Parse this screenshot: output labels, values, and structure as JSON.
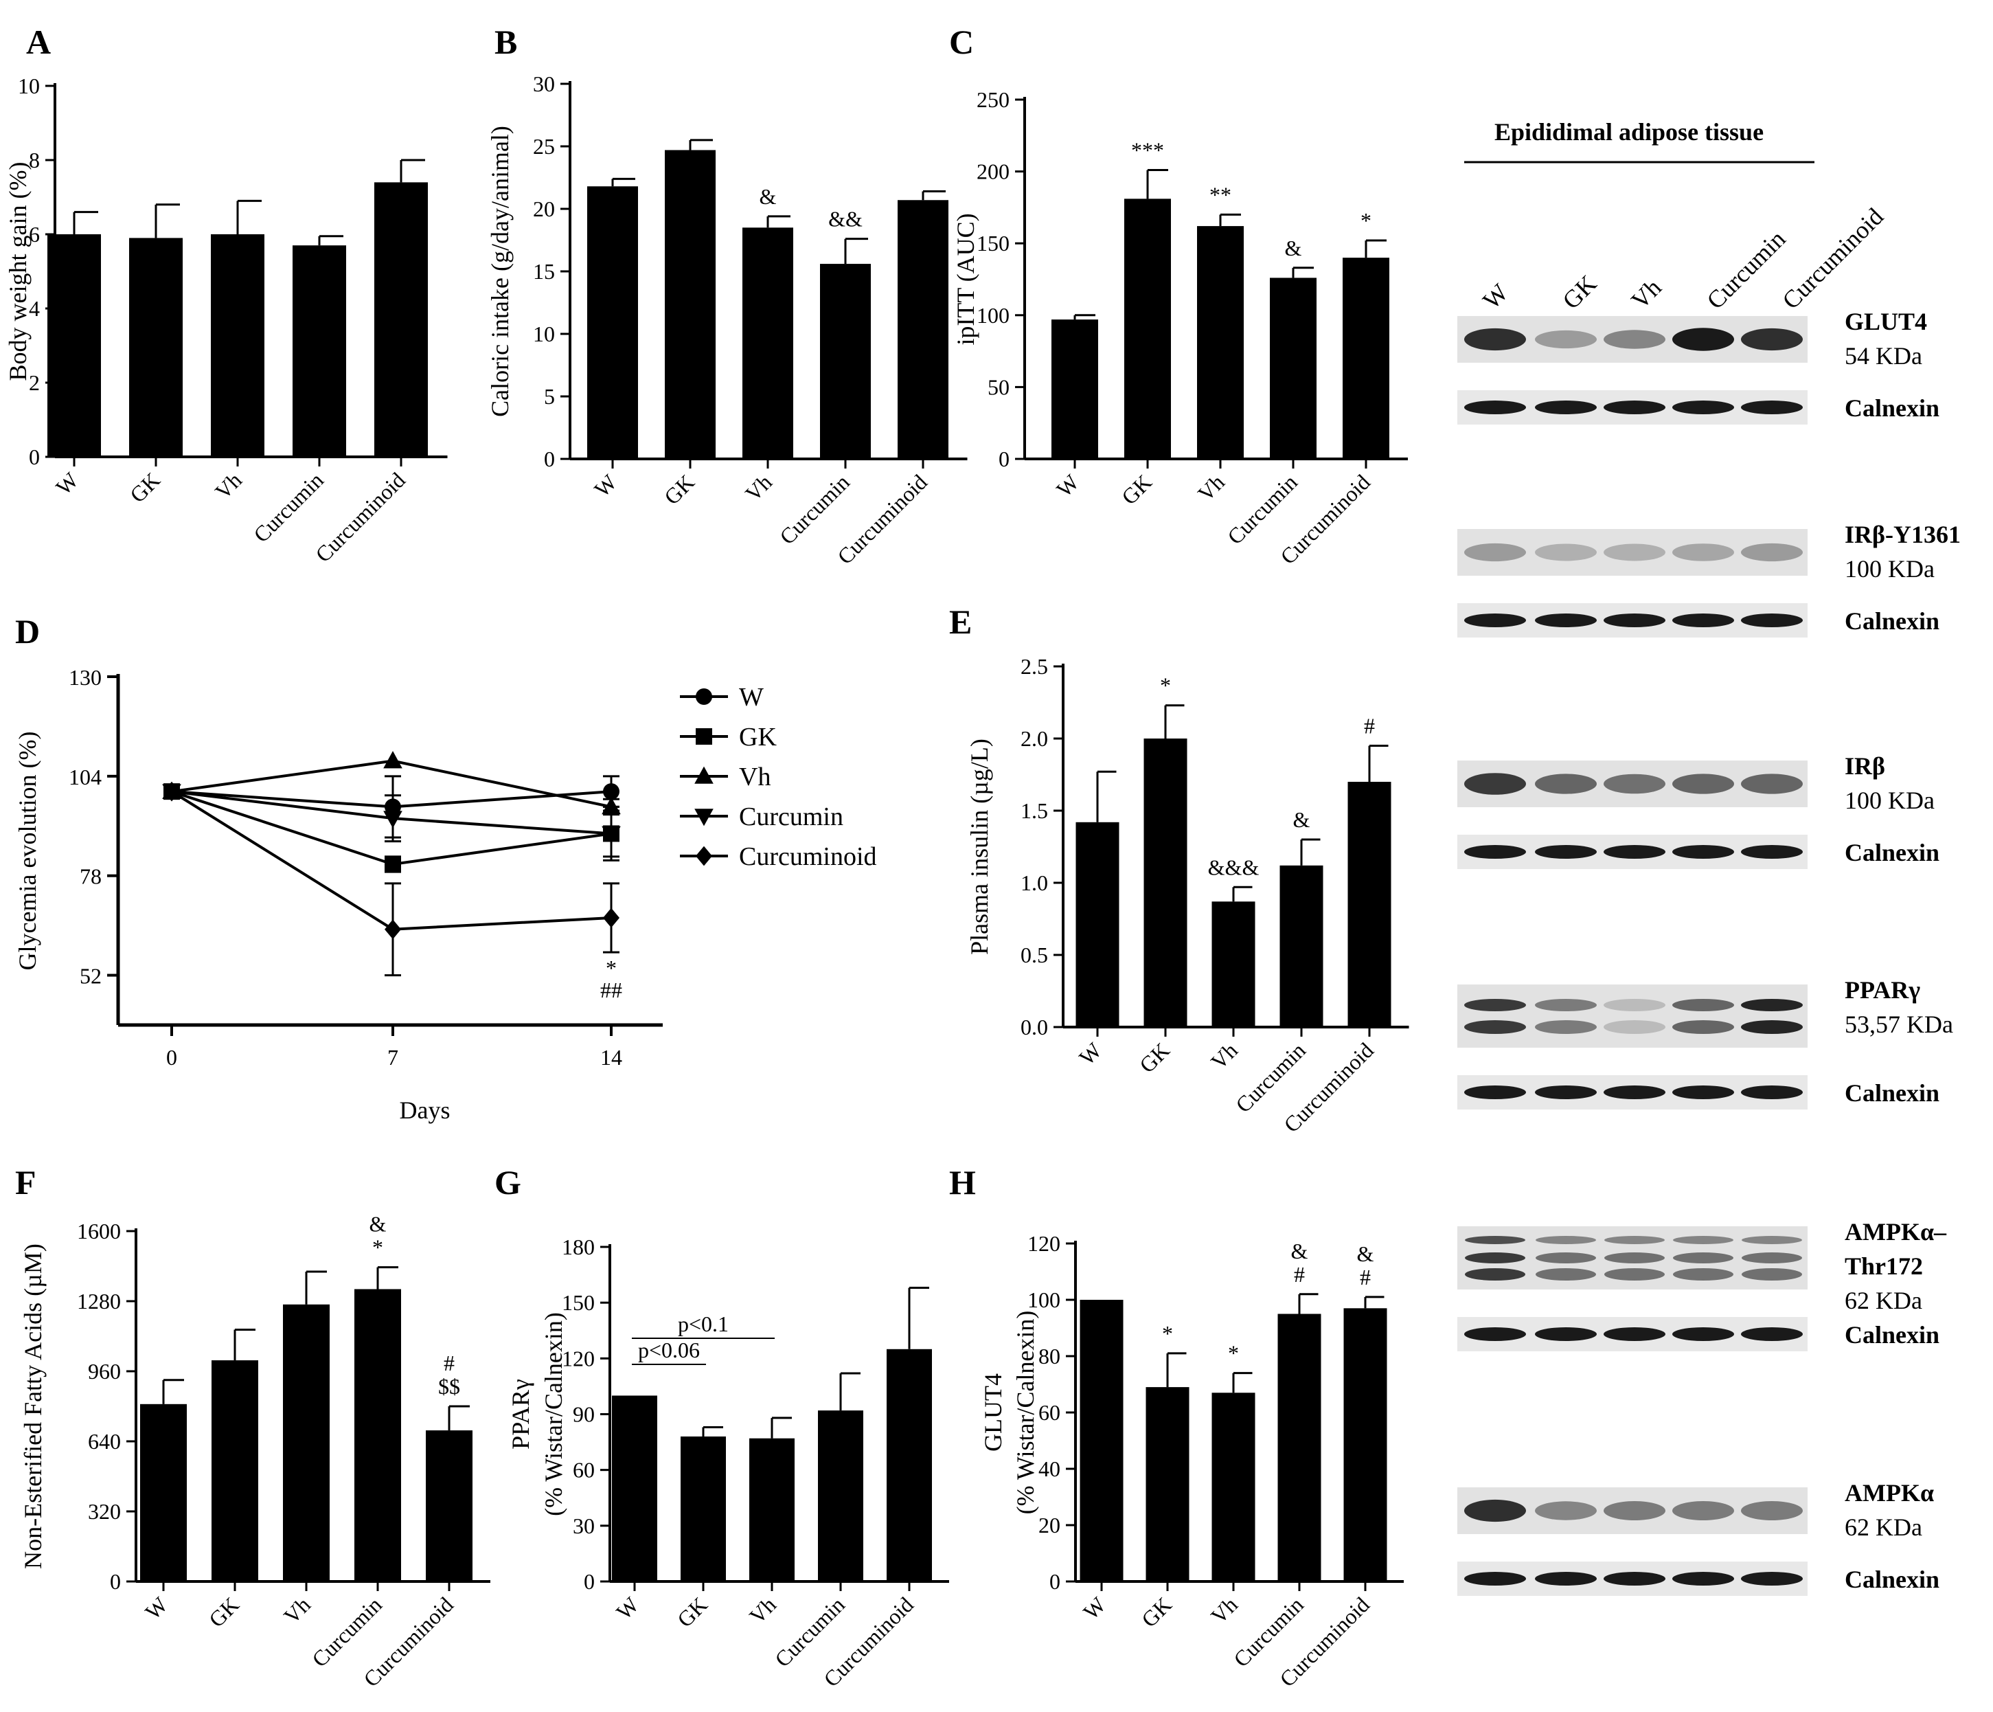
{
  "chart_data": [
    {
      "panel": "A",
      "type": "bar",
      "categories": [
        "W",
        "GK",
        "Vh",
        "Curcumin",
        "Curcuminoid"
      ],
      "values": [
        6.0,
        5.9,
        6.0,
        5.7,
        7.4
      ],
      "errors": [
        0.6,
        0.9,
        0.9,
        0.25,
        0.6
      ],
      "ylabel": "Body weight gain (%)",
      "ylim": [
        0,
        10
      ],
      "yticks": [
        0,
        2,
        4,
        6,
        8,
        10
      ],
      "annotations": [
        "",
        "",
        "",
        "",
        ""
      ]
    },
    {
      "panel": "B",
      "type": "bar",
      "categories": [
        "W",
        "GK",
        "Vh",
        "Curcumin",
        "Curcuminoid"
      ],
      "values": [
        21.8,
        24.7,
        18.5,
        15.6,
        20.7
      ],
      "errors": [
        0.6,
        0.8,
        0.9,
        2.0,
        0.7
      ],
      "ylabel": "Caloric intake (g/day/animal)",
      "ylim": [
        0,
        30
      ],
      "yticks": [
        0,
        5,
        10,
        15,
        20,
        25,
        30
      ],
      "annotations": [
        "",
        "",
        "&",
        "&&",
        ""
      ]
    },
    {
      "panel": "C",
      "type": "bar",
      "categories": [
        "W",
        "GK",
        "Vh",
        "Curcumin",
        "Curcuminoid"
      ],
      "values": [
        97,
        181,
        162,
        126,
        140
      ],
      "errors": [
        3,
        20,
        8,
        7,
        12
      ],
      "ylabel": "ipITT (AUC)",
      "ylim": [
        0,
        250
      ],
      "yticks": [
        0,
        50,
        100,
        150,
        200,
        250
      ],
      "annotations": [
        "",
        "***",
        "**",
        "&",
        "*"
      ]
    },
    {
      "panel": "D",
      "type": "line",
      "x": [
        0,
        7,
        14
      ],
      "xlabel": "Days",
      "ylabel": "Glycemia evolution (%)",
      "ylim": [
        39,
        130
      ],
      "yticks": [
        52,
        78,
        104,
        130
      ],
      "xticks": [
        0,
        7,
        14
      ],
      "series": [
        {
          "name": "W",
          "marker": "circle",
          "values": [
            100,
            96,
            100
          ],
          "errors": [
            0,
            8,
            4
          ]
        },
        {
          "name": "GK",
          "marker": "square",
          "values": [
            100,
            81,
            89
          ],
          "errors": [
            0,
            2,
            7
          ]
        },
        {
          "name": "Vh",
          "marker": "triangle-up",
          "values": [
            100,
            108,
            96
          ],
          "errors": [
            0,
            0,
            2
          ]
        },
        {
          "name": "Curcumin",
          "marker": "triangle-down",
          "values": [
            100,
            93,
            89
          ],
          "errors": [
            0,
            6,
            6
          ]
        },
        {
          "name": "Curcuminoid",
          "marker": "diamond",
          "values": [
            100,
            64,
            67
          ],
          "errors": [
            0,
            12,
            9
          ]
        }
      ],
      "annotations": [
        {
          "x": 14,
          "lines": [
            "*",
            "##"
          ]
        }
      ]
    },
    {
      "panel": "E",
      "type": "bar",
      "categories": [
        "W",
        "GK",
        "Vh",
        "Curcumin",
        "Curcuminoid"
      ],
      "values": [
        1.42,
        2.0,
        0.87,
        1.12,
        1.7
      ],
      "errors": [
        0.35,
        0.23,
        0.1,
        0.18,
        0.25
      ],
      "ylabel": "Plasma insulin (µg/L)",
      "ylim": [
        0,
        2.5
      ],
      "yticks": [
        "0.0",
        "0.5",
        "1.0",
        "1.5",
        "2.0",
        "2.5"
      ],
      "annotations": [
        "",
        "*",
        "&&&",
        "&",
        "#"
      ]
    },
    {
      "panel": "F",
      "type": "bar",
      "categories": [
        "W",
        "GK",
        "Vh",
        "Curcumin",
        "Curcuminoid"
      ],
      "values": [
        810,
        1010,
        1265,
        1335,
        690
      ],
      "errors": [
        110,
        140,
        150,
        100,
        110
      ],
      "ylabel": "Non-Esterified Fatty Acids (µM)",
      "ylim": [
        0,
        1600
      ],
      "yticks": [
        0,
        320,
        640,
        960,
        1280,
        1600
      ],
      "annotations": [
        "",
        "",
        "",
        "&\n*",
        "#\n$$"
      ]
    },
    {
      "panel": "G",
      "type": "bar",
      "categories": [
        "W",
        "GK",
        "Vh",
        "Curcumin",
        "Curcuminoid"
      ],
      "values": [
        100,
        78,
        77,
        92,
        125
      ],
      "errors": [
        0,
        5,
        11,
        20,
        33
      ],
      "ylabel": "PPARγ",
      "ylabel2": "(% Wistar/Calnexin)",
      "ylim": [
        0,
        180
      ],
      "yticks": [
        0,
        30,
        60,
        90,
        120,
        150,
        180
      ],
      "annotations": [
        "",
        "",
        "",
        "",
        ""
      ],
      "brackets": [
        {
          "label": "p<0.06",
          "from": "W",
          "to": "GK"
        },
        {
          "label": "p<0.1",
          "from": "W",
          "to": "Vh"
        }
      ]
    },
    {
      "panel": "H",
      "type": "bar",
      "categories": [
        "W",
        "GK",
        "Vh",
        "Curcumin",
        "Curcuminoid"
      ],
      "values": [
        100,
        69,
        67,
        95,
        97
      ],
      "errors": [
        0,
        12,
        7,
        7,
        4
      ],
      "ylabel": "GLUT4",
      "ylabel2": "(% Wistar/Calnexin)",
      "ylim": [
        0,
        120
      ],
      "yticks": [
        0,
        20,
        40,
        60,
        80,
        100,
        120
      ],
      "annotations": [
        "",
        "*",
        "*",
        "&\n#",
        "&\n#"
      ]
    }
  ],
  "blots": {
    "title": "Epididimal adipose tissue",
    "lanes": [
      "W",
      "GK",
      "Vh",
      "Curcumin",
      "Curcuminoid"
    ],
    "rows": [
      {
        "label": "GLUT4",
        "kda": "54 KDa",
        "loading": "Calnexin",
        "intensity": [
          0.85,
          0.35,
          0.45,
          0.95,
          0.85
        ],
        "bands": 1
      },
      {
        "label": "IRβ-Y1361",
        "kda": "100 KDa",
        "loading": "Calnexin",
        "intensity": [
          0.35,
          0.25,
          0.25,
          0.3,
          0.35
        ],
        "bands": 1
      },
      {
        "label": "IRβ",
        "kda": "100 KDa",
        "loading": "Calnexin",
        "intensity": [
          0.8,
          0.6,
          0.55,
          0.6,
          0.6
        ],
        "bands": 1
      },
      {
        "label": "PPARγ",
        "kda": "53,57 KDa",
        "loading": "Calnexin",
        "intensity": [
          0.8,
          0.5,
          0.2,
          0.6,
          0.9
        ],
        "bands": 2
      },
      {
        "label": "AMPKα–",
        "label2": "Thr172",
        "kda": "62 KDa",
        "loading": "Calnexin",
        "intensity": [
          0.8,
          0.55,
          0.55,
          0.55,
          0.55
        ],
        "bands": 3
      },
      {
        "label": "AMPKα",
        "kda": "62 KDa",
        "loading": "Calnexin",
        "intensity": [
          0.85,
          0.45,
          0.5,
          0.5,
          0.5
        ],
        "bands": 1
      }
    ]
  }
}
